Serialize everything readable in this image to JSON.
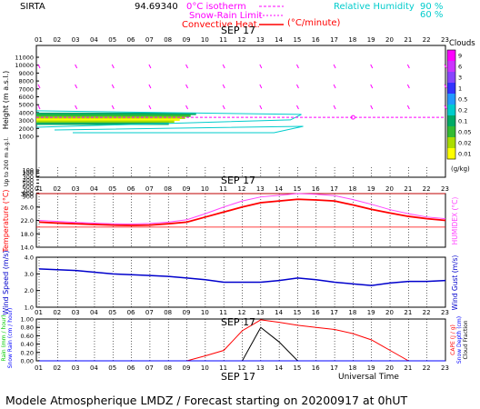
{
  "header": {
    "station": "SIRTA",
    "station_code": "94.69340",
    "legend_iso": "0°C isotherm",
    "legend_snow": "Snow-Rain Limit",
    "legend_conv": "Convective Heat.",
    "legend_conv_unit": "(°C/minute)",
    "legend_rh": "Relative Humidity",
    "rh_90": "90 %",
    "rh_60": "60 %"
  },
  "date_label": "SEP 17",
  "hours": [
    "01",
    "02",
    "03",
    "04",
    "05",
    "06",
    "07",
    "08",
    "09",
    "10",
    "11",
    "12",
    "13",
    "14",
    "15",
    "16",
    "17",
    "18",
    "19",
    "20",
    "21",
    "22",
    "23"
  ],
  "colors": {
    "isotherm": "#ff00ff",
    "rh": "#00cccc",
    "temperature": "#ff0000",
    "humidex": "#ff44ff",
    "wind": "#0000cc",
    "rain": "#ff0000",
    "cape": "#000000",
    "snow": "#0000ff"
  },
  "chart_data": [
    {
      "type": "heatmap",
      "title": "Clouds",
      "ylabel": "Height (m a.s.l.)",
      "ylabel_extra": "Up to 200 m a.g.l.",
      "y_ticks_upper": [
        "11000",
        "10000",
        "9000",
        "8000",
        "7000",
        "6000",
        "5000",
        "4000",
        "3000",
        "2000",
        "1000"
      ],
      "y_ticks_lower": [
        "900",
        "800",
        "700",
        "600",
        "500",
        "400",
        "300",
        "200",
        "150",
        "100"
      ],
      "colorbar_label": "Clouds",
      "colorbar_unit": "(g/kg)",
      "colorbar_ticks": [
        "9",
        "6",
        "3",
        "1",
        "0.5",
        "0.2",
        "0.1",
        "0.05",
        "0.02",
        "0.01"
      ],
      "colorbar_colors": [
        "#ff00ff",
        "#cc33ff",
        "#8844ff",
        "#3333ff",
        "#2299ff",
        "#00cccc",
        "#00aa66",
        "#33bb33",
        "#aadd00",
        "#ffff00"
      ],
      "cloud_layer": {
        "base_m": 2500,
        "top_m": 4000,
        "x_start_hour": 1,
        "x_end_hour": 9.5,
        "rh_contour_end_hour": 15.2
      },
      "isotherm_height_m": [
        3400,
        3400,
        3400,
        3400,
        3400,
        3400,
        3400,
        3400,
        3400,
        3400,
        3400,
        3400,
        3400,
        3400,
        3400,
        3400,
        3400,
        3400,
        3400,
        3400,
        3400,
        3400,
        3400
      ]
    },
    {
      "type": "line",
      "ylabel": "Temperature (°C)",
      "ylabel_right": "HUMIDEX (°C)",
      "ylim": [
        14,
        30
      ],
      "y_ticks": [
        "30.0",
        "26.0",
        "22.0",
        "18.0",
        "14.0"
      ],
      "x": [
        1,
        2,
        3,
        4,
        5,
        6,
        7,
        8,
        9,
        10,
        11,
        12,
        13,
        14,
        15,
        16,
        17,
        18,
        19,
        20,
        21,
        22,
        23
      ],
      "series": [
        {
          "name": "Temperature",
          "values": [
            21.5,
            21.2,
            21.0,
            20.8,
            20.6,
            20.5,
            20.6,
            21.0,
            21.5,
            23.0,
            24.5,
            26.0,
            27.3,
            27.8,
            28.3,
            28.1,
            27.8,
            26.6,
            25.3,
            24.2,
            23.2,
            22.5,
            22.0
          ]
        },
        {
          "name": "Humidex",
          "values": [
            22.0,
            21.7,
            21.4,
            21.2,
            21.0,
            20.9,
            21.1,
            21.5,
            22.2,
            24.0,
            26.0,
            27.8,
            29.0,
            29.5,
            30.0,
            29.8,
            29.4,
            28.2,
            26.8,
            25.2,
            24.0,
            23.0,
            22.5
          ]
        }
      ],
      "hlines": [
        20.0,
        30.0
      ]
    },
    {
      "type": "line",
      "ylabel": "Wind Speed (m/s)",
      "ylabel_right": "Wind Gust (m/s)",
      "ylim": [
        1.0,
        4.0
      ],
      "y_ticks": [
        "4.0",
        "3.0",
        "2.0",
        "1.0"
      ],
      "x": [
        1,
        2,
        3,
        4,
        5,
        6,
        7,
        8,
        9,
        10,
        11,
        12,
        13,
        14,
        15,
        16,
        17,
        18,
        19,
        20,
        21,
        22,
        23
      ],
      "series": [
        {
          "name": "Wind Speed",
          "values": [
            3.3,
            3.25,
            3.2,
            3.1,
            3.0,
            2.95,
            2.9,
            2.85,
            2.75,
            2.65,
            2.5,
            2.5,
            2.5,
            2.6,
            2.75,
            2.65,
            2.5,
            2.4,
            2.3,
            2.45,
            2.55,
            2.55,
            2.6
          ]
        }
      ]
    },
    {
      "type": "line",
      "ylabel_left": [
        "Rain (mm / hour)",
        "Snow Rain (cm / hour)"
      ],
      "ylabel_right": [
        "CAPE (J / g)",
        "Snow Depth (cm)",
        "Cloud Fraction"
      ],
      "ylim": [
        0,
        1.0
      ],
      "y_ticks": [
        "1.00",
        "0.80",
        "0.60",
        "0.40",
        "0.20",
        "0.00"
      ],
      "x": [
        1,
        2,
        3,
        4,
        5,
        6,
        7,
        8,
        9,
        10,
        11,
        12,
        13,
        14,
        15,
        16,
        17,
        18,
        19,
        20,
        21,
        22,
        23
      ],
      "series": [
        {
          "name": "CAPE",
          "values": [
            0,
            0,
            0,
            0,
            0,
            0,
            0,
            0,
            0,
            0.12,
            0.25,
            0.72,
            0.98,
            0.92,
            0.85,
            0.8,
            0.75,
            0.65,
            0.5,
            0.25,
            0,
            0,
            0
          ]
        },
        {
          "name": "Rain",
          "values": [
            0,
            0,
            0,
            0,
            0,
            0,
            0,
            0,
            0,
            0,
            0,
            0,
            0.8,
            0.45,
            0,
            0,
            0,
            0,
            0,
            0,
            0,
            0,
            0
          ]
        },
        {
          "name": "Snow",
          "values": [
            0,
            0,
            0,
            0,
            0,
            0,
            0,
            0,
            0,
            0,
            0,
            0,
            0,
            0,
            0,
            0,
            0,
            0,
            0,
            0,
            0,
            0,
            0
          ]
        }
      ]
    }
  ],
  "bottom_labels": {
    "date": "SEP 17",
    "utc": "Universal Time"
  },
  "footer": "Modele Atmospherique LMDZ / Forecast starting on 20200917 at 0hUT"
}
